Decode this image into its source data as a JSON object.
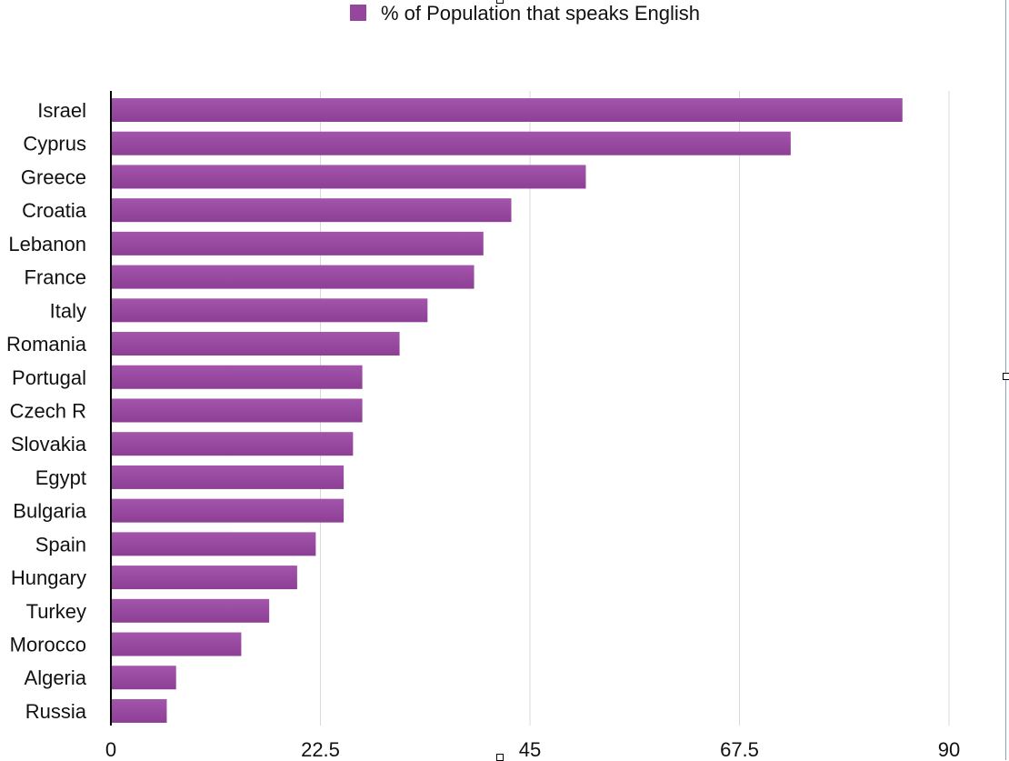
{
  "chart_data": {
    "type": "bar",
    "orientation": "horizontal",
    "legend": {
      "label": "% of Population that speaks English",
      "position": "top"
    },
    "categories": [
      "Israel",
      "Cyprus",
      "Greece",
      "Croatia",
      "Lebanon",
      "France",
      "Italy",
      "Romania",
      "Portugal",
      "Czech R",
      "Slovakia",
      "Egypt",
      "Bulgaria",
      "Spain",
      "Hungary",
      "Turkey",
      "Morocco",
      "Algeria",
      "Russia"
    ],
    "series": [
      {
        "name": "% of Population that speaks English",
        "values": [
          85,
          73,
          51,
          43,
          40,
          39,
          34,
          31,
          27,
          27,
          26,
          25,
          25,
          22,
          20,
          17,
          14,
          7,
          6
        ],
        "color": "#94479d"
      }
    ],
    "xlim": [
      0,
      90
    ],
    "xticks": [
      "0",
      "22.5",
      "45",
      "67.5",
      "90"
    ],
    "grid": true
  }
}
